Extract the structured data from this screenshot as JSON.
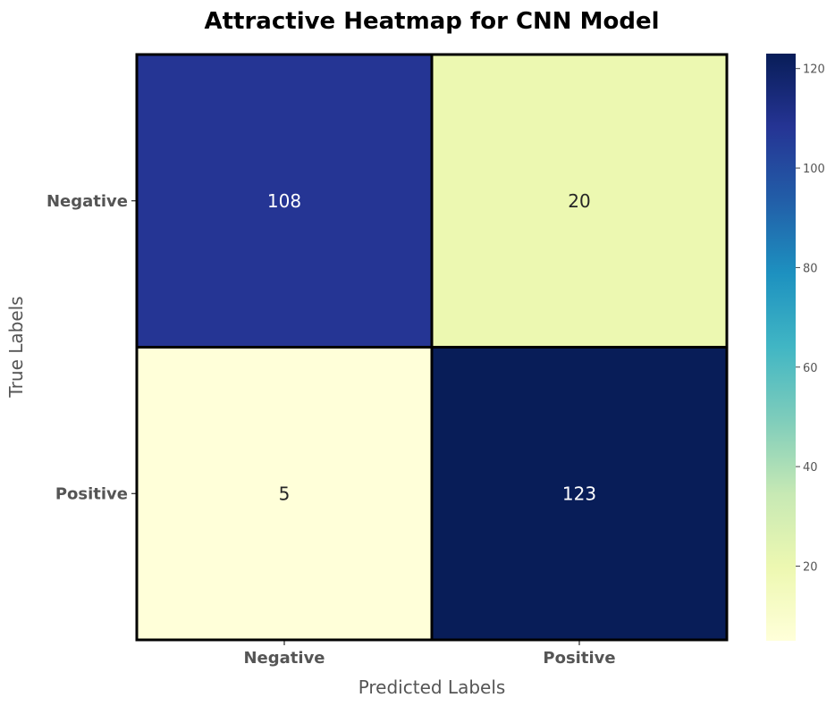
{
  "chart_data": {
    "type": "heatmap",
    "title": "Attractive Heatmap for CNN Model",
    "xlabel": "Predicted Labels",
    "ylabel": "True Labels",
    "x_categories": [
      "Negative",
      "Positive"
    ],
    "y_categories": [
      "Negative",
      "Positive"
    ],
    "values": [
      [
        108,
        20
      ],
      [
        5,
        123
      ]
    ],
    "colormap": "YlGnBu",
    "colorbar": {
      "min": 5,
      "max": 123,
      "ticks": [
        20,
        40,
        60,
        80,
        100,
        120
      ]
    },
    "cell_border_color": "#000000"
  }
}
